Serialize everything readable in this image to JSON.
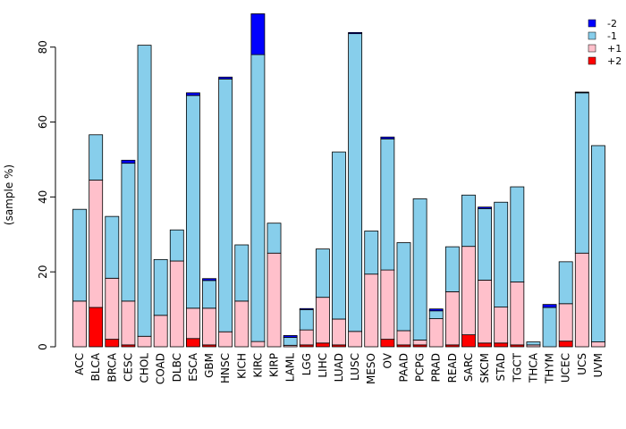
{
  "chart_data": {
    "type": "bar",
    "stacked": true,
    "title": "",
    "xlabel": "",
    "ylabel": "(sample %)",
    "ylim": [
      0,
      89
    ],
    "yticks": [
      0,
      20,
      40,
      60,
      80
    ],
    "legend_position": "top-right",
    "categories": [
      "ACC",
      "BLCA",
      "BRCA",
      "CESC",
      "CHOL",
      "COAD",
      "DLBC",
      "ESCA",
      "GBM",
      "HNSC",
      "KICH",
      "KIRC",
      "KIRP",
      "LAML",
      "LGG",
      "LIHC",
      "LUAD",
      "LUSC",
      "MESO",
      "OV",
      "PAAD",
      "PCPG",
      "PRAD",
      "READ",
      "SARC",
      "SKCM",
      "STAD",
      "TGCT",
      "THCA",
      "THYM",
      "UCEC",
      "UCS",
      "UVM"
    ],
    "series": [
      {
        "name": "+2",
        "color": "#ff0000",
        "values": [
          0,
          10.5,
          2,
          0.5,
          0,
          0,
          0,
          2.2,
          0.5,
          0,
          0,
          0,
          0,
          0,
          0.5,
          1,
          0.5,
          0,
          0,
          2,
          0.5,
          0.5,
          0,
          0.5,
          3.2,
          1,
          1,
          0.5,
          0,
          0,
          1.5,
          0,
          0
        ]
      },
      {
        "name": "+1",
        "color": "#ffc0cb",
        "values": [
          12.2,
          34,
          16.3,
          11.7,
          2.8,
          8.4,
          22.9,
          8.1,
          9.8,
          4,
          12.2,
          1.4,
          25,
          0.4,
          4,
          12.2,
          6.9,
          4.1,
          19.4,
          18.5,
          3.8,
          1.3,
          7.5,
          14.2,
          23.6,
          16.8,
          9.6,
          16.8,
          0.5,
          0,
          10,
          25,
          1.3
        ]
      },
      {
        "name": "-1",
        "color": "#87ceeb",
        "values": [
          24.5,
          12.1,
          16.5,
          36.8,
          77.7,
          14.9,
          8.3,
          56.8,
          7.4,
          67.5,
          15,
          76.6,
          8,
          2.1,
          5.4,
          12.9,
          44.6,
          79.5,
          11.5,
          35,
          23.5,
          37.7,
          2.1,
          12,
          13.7,
          19.1,
          28,
          25.4,
          0.8,
          10.5,
          11.2,
          42.8,
          52.4
        ]
      },
      {
        "name": "-2",
        "color": "#0000ff",
        "values": [
          0,
          0,
          0,
          0.8,
          0,
          0,
          0,
          0.7,
          0.5,
          0.5,
          0,
          10.9,
          0,
          0.5,
          0.3,
          0,
          0,
          0.3,
          0,
          0.5,
          0,
          0,
          0.5,
          0,
          0,
          0.4,
          0,
          0,
          0,
          0.8,
          0,
          0.2,
          0
        ]
      }
    ]
  }
}
